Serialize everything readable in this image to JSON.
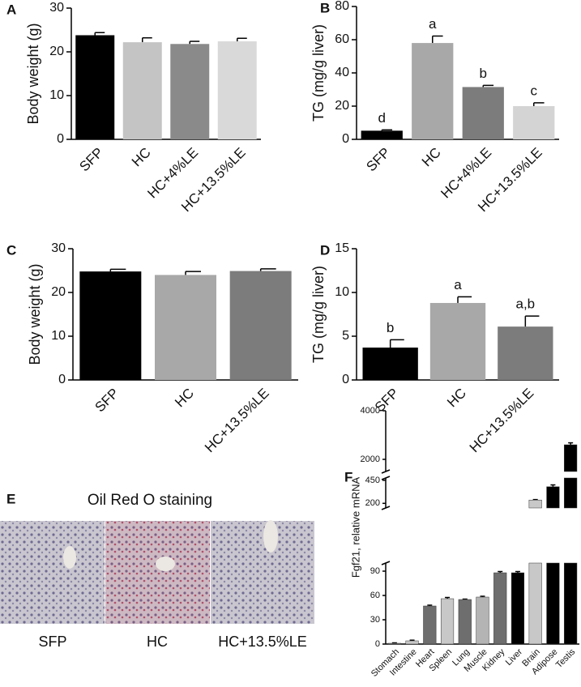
{
  "chart_data": [
    {
      "type": "bar",
      "panel": "A",
      "ylabel": "Body weight (g)",
      "categories": [
        "SFP",
        "HC",
        "HC+4%LE",
        "HC+13.5%LE"
      ],
      "values": [
        23.8,
        22.2,
        21.8,
        22.4
      ],
      "errors": [
        0.6,
        1.0,
        0.6,
        0.7
      ],
      "colors": [
        "#000000",
        "#c4c4c4",
        "#8a8a8a",
        "#d9d9d9"
      ],
      "ylim": [
        0,
        30
      ],
      "yticks": [
        0,
        10,
        20,
        30
      ]
    },
    {
      "type": "bar",
      "panel": "B",
      "ylabel": "TG (mg/g liver)",
      "categories": [
        "SFP",
        "HC",
        "HC+4%LE",
        "HC+13.5%LE"
      ],
      "values": [
        5.2,
        58,
        31.5,
        20
      ],
      "errors": [
        0.5,
        4.2,
        1.0,
        2.0
      ],
      "annotations": [
        "d",
        "a",
        "b",
        "c"
      ],
      "colors": [
        "#000000",
        "#a8a8a8",
        "#7c7c7c",
        "#d4d4d4"
      ],
      "ylim": [
        0,
        80
      ],
      "yticks": [
        0,
        20,
        40,
        60,
        80
      ]
    },
    {
      "type": "bar",
      "panel": "C",
      "ylabel": "Body weight (g)",
      "categories": [
        "SFP",
        "HC",
        "HC+13.5%LE"
      ],
      "values": [
        24.8,
        24.0,
        24.9
      ],
      "errors": [
        0.5,
        0.8,
        0.5
      ],
      "colors": [
        "#000000",
        "#a8a8a8",
        "#7c7c7c"
      ],
      "ylim": [
        0,
        30
      ],
      "yticks": [
        0,
        10,
        20,
        30
      ]
    },
    {
      "type": "bar",
      "panel": "D",
      "ylabel": "TG (mg/g liver)",
      "categories": [
        "SFP",
        "HC",
        "HC+13.5%LE"
      ],
      "values": [
        3.7,
        8.8,
        6.1
      ],
      "errors": [
        0.9,
        0.7,
        1.2
      ],
      "annotations": [
        "b",
        "a",
        "a,b"
      ],
      "colors": [
        "#000000",
        "#a8a8a8",
        "#7c7c7c"
      ],
      "ylim": [
        0,
        15
      ],
      "yticks": [
        0,
        5,
        10,
        15
      ]
    },
    {
      "type": "broken-bar",
      "panel": "F",
      "ylabel": "Fgf21, relative mRNA",
      "categories": [
        "Stomach",
        "Intestine",
        "Heart",
        "Spleen",
        "Lung",
        "Muscle",
        "Kidney",
        "Liver",
        "Brain",
        "Adipose",
        "Testis"
      ],
      "values": [
        1,
        4,
        47,
        56,
        55,
        58,
        88,
        88,
        236,
        380,
        2600
      ],
      "errors": [
        0.5,
        0.8,
        1,
        1.5,
        0.5,
        1,
        1.5,
        1.5,
        5,
        20,
        80
      ],
      "colors": [
        "#8a8a8a",
        "#c8c8c8",
        "#6e6e6e",
        "#c8c8c8",
        "#6e6e6e",
        "#b4b4b4",
        "#6e6e6e",
        "#000000",
        "#c8c8c8",
        "#000000",
        "#000000"
      ],
      "segments": [
        {
          "ylim": [
            0,
            100
          ],
          "yticks": [
            0,
            30,
            60,
            90
          ]
        },
        {
          "ylim": [
            150,
            475
          ],
          "yticks": [
            200,
            450
          ]
        },
        {
          "ylim": [
            1500,
            4000
          ],
          "yticks": [
            2000,
            4000
          ]
        }
      ]
    }
  ],
  "image_panel": {
    "panel": "E",
    "title": "Oil Red O staining",
    "captions": [
      "SFP",
      "HC",
      "HC+13.5%LE"
    ]
  }
}
